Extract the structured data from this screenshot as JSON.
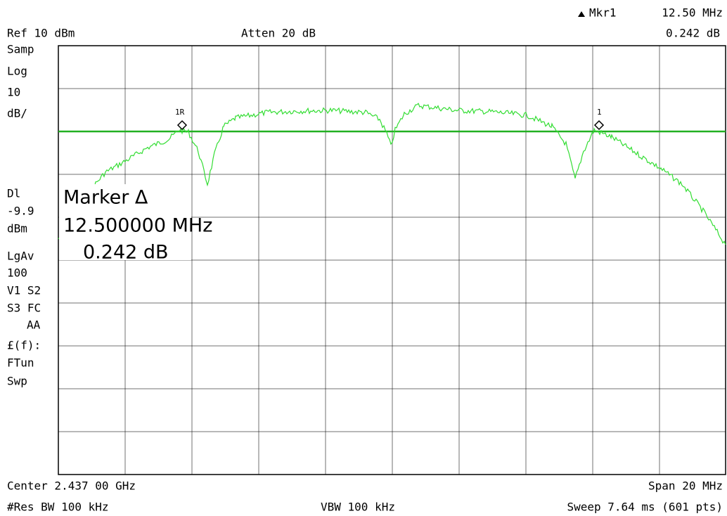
{
  "header": {
    "marker_name": "Mkr1",
    "marker_freq": "12.50 MHz",
    "marker_delta": "0.242 dB",
    "ref_level": "Ref 10 dBm",
    "atten": "Atten 20 dB"
  },
  "side_labels": [
    "Samp",
    "Log",
    "10",
    "dB/",
    "Dl",
    "-9.9",
    "dBm",
    "LgAv",
    "100",
    "V1  S2",
    "S3  FC",
    "AA",
    "£(f):",
    "FTun",
    "Swp"
  ],
  "marker_box": {
    "title": "Marker Δ",
    "freq": "12.500000 MHz",
    "delta": "0.242 dB"
  },
  "markers": {
    "reference": "1R",
    "delta": "1"
  },
  "footer": {
    "center": "Center 2.437 00 GHz",
    "span": "Span 20 MHz",
    "rbw": "#Res BW 100 kHz",
    "vbw": "VBW 100 kHz",
    "sweep": "Sweep 7.64 ms (601 pts)"
  }
}
